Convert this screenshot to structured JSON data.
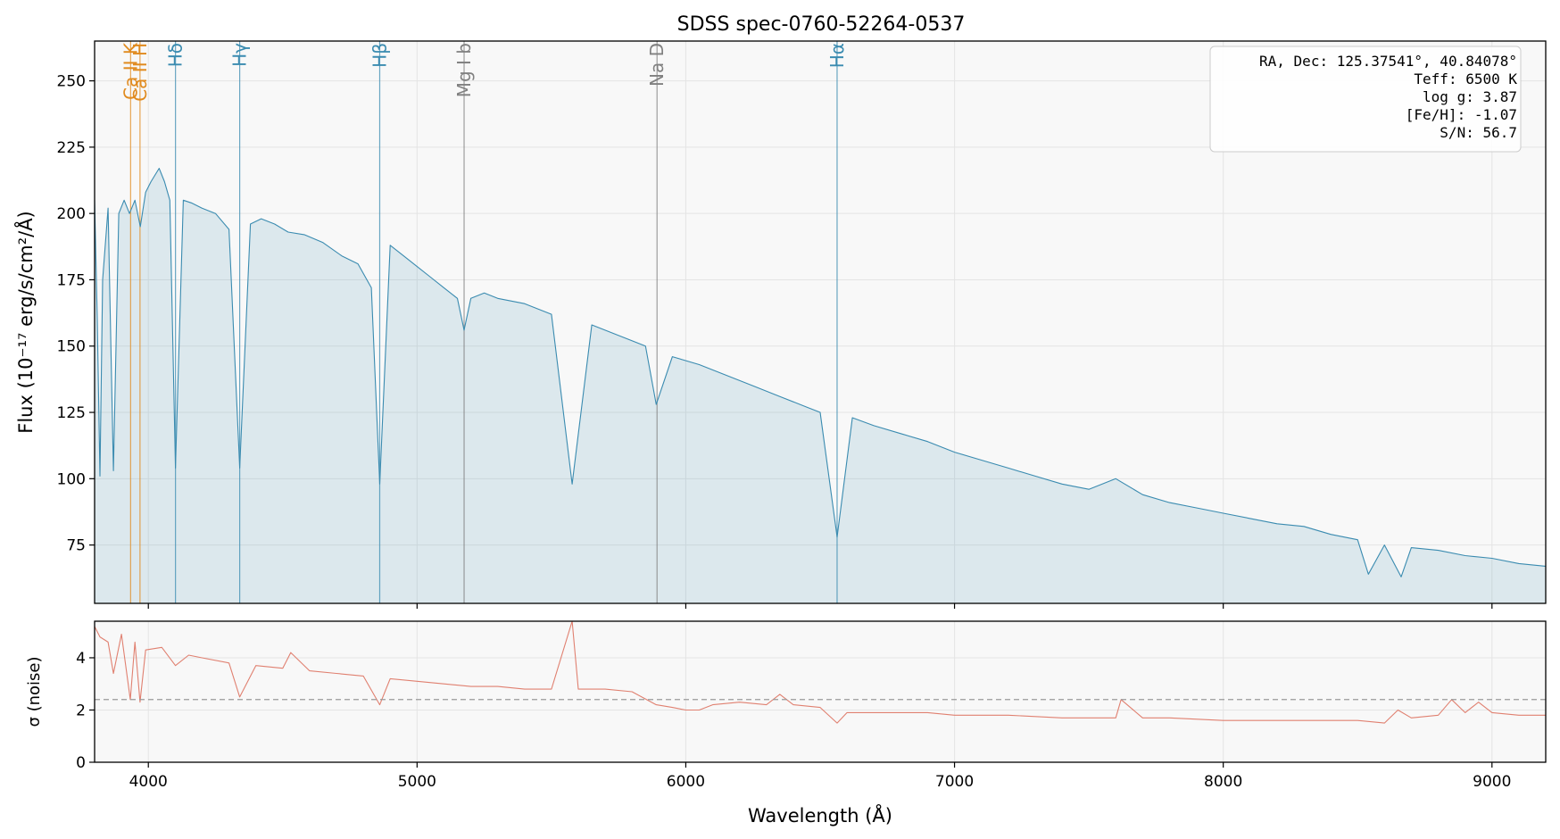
{
  "chart_data": [
    {
      "type": "line",
      "title": "SDSS spec-0760-52264-0537",
      "xlabel": "Wavelength (Å)",
      "ylabel": "Flux (10⁻¹⁷ erg/s/cm²/Å)",
      "xlim": [
        3800,
        9200
      ],
      "ylim": [
        53,
        265
      ],
      "xticks": [
        4000,
        5000,
        6000,
        7000,
        8000,
        9000
      ],
      "yticks": [
        75,
        100,
        125,
        150,
        175,
        200,
        225,
        250
      ],
      "grid": true,
      "fill_under": true,
      "series": [
        {
          "color": "#3a8bb0",
          "x": [
            3800,
            3810,
            3820,
            3830,
            3850,
            3870,
            3890,
            3910,
            3930,
            3950,
            3970,
            3990,
            4010,
            4040,
            4060,
            4080,
            4101,
            4130,
            4160,
            4200,
            4250,
            4300,
            4340,
            4380,
            4420,
            4470,
            4520,
            4580,
            4650,
            4720,
            4780,
            4830,
            4861,
            4900,
            4950,
            5000,
            5050,
            5100,
            5150,
            5175,
            5200,
            5250,
            5300,
            5400,
            5500,
            5577,
            5650,
            5750,
            5850,
            5890,
            5950,
            6050,
            6150,
            6250,
            6350,
            6450,
            6500,
            6563,
            6620,
            6700,
            6800,
            6900,
            7000,
            7100,
            7200,
            7300,
            7400,
            7500,
            7600,
            7700,
            7800,
            7900,
            8000,
            8100,
            8200,
            8300,
            8400,
            8500,
            8540,
            8600,
            8662,
            8700,
            8800,
            8900,
            9000,
            9100,
            9200
          ],
          "y": [
            205,
            160,
            101,
            175,
            202,
            103,
            200,
            205,
            200,
            205,
            195,
            208,
            212,
            217,
            212,
            205,
            104,
            205,
            204,
            202,
            200,
            194,
            104,
            196,
            198,
            196,
            193,
            192,
            189,
            184,
            181,
            172,
            98,
            188,
            184,
            180,
            176,
            172,
            168,
            156,
            168,
            170,
            168,
            166,
            162,
            98,
            158,
            154,
            150,
            128,
            146,
            143,
            139,
            135,
            131,
            127,
            125,
            78,
            123,
            120,
            117,
            114,
            110,
            107,
            104,
            101,
            98,
            96,
            100,
            94,
            91,
            89,
            87,
            85,
            83,
            82,
            79,
            77,
            64,
            75,
            63,
            74,
            73,
            71,
            70,
            68,
            67
          ]
        }
      ],
      "line_markers": [
        {
          "label": "Ca II K",
          "wavelength": 3934,
          "color": "#e08a1e"
        },
        {
          "label": "Ca II H",
          "wavelength": 3969,
          "color": "#e08a1e"
        },
        {
          "label": "Hδ",
          "wavelength": 4101,
          "color": "#3a8bb0"
        },
        {
          "label": "Hγ",
          "wavelength": 4340,
          "color": "#3a8bb0"
        },
        {
          "label": "Hβ",
          "wavelength": 4861,
          "color": "#3a8bb0"
        },
        {
          "label": "Mg I b",
          "wavelength": 5175,
          "color": "#808080"
        },
        {
          "label": "Na D",
          "wavelength": 5893,
          "color": "#808080"
        },
        {
          "label": "Hα",
          "wavelength": 6563,
          "color": "#3a8bb0"
        }
      ],
      "annotation": {
        "placement": "top-right",
        "lines": [
          "RA, Dec: 125.37541°, 40.84078°",
          "Teff: 6500 K",
          "log g: 3.87",
          "[Fe/H]: -1.07",
          "S/N: 56.7"
        ]
      }
    },
    {
      "type": "line",
      "xlabel": "Wavelength (Å)",
      "ylabel": "σ (noise)",
      "xlim": [
        3800,
        9200
      ],
      "ylim": [
        0,
        5.4
      ],
      "xticks": [
        4000,
        5000,
        6000,
        7000,
        8000,
        9000
      ],
      "yticks": [
        0,
        2,
        4
      ],
      "grid": true,
      "reference_line": 2.4,
      "series": [
        {
          "color": "#e08070",
          "x": [
            3800,
            3820,
            3850,
            3870,
            3900,
            3933,
            3950,
            3969,
            3990,
            4050,
            4101,
            4150,
            4200,
            4300,
            4340,
            4400,
            4500,
            4530,
            4600,
            4700,
            4800,
            4861,
            4900,
            5000,
            5100,
            5200,
            5300,
            5400,
            5500,
            5577,
            5600,
            5700,
            5800,
            5890,
            5950,
            6000,
            6050,
            6100,
            6200,
            6300,
            6350,
            6400,
            6500,
            6563,
            6600,
            6700,
            6800,
            6900,
            7000,
            7200,
            7400,
            7600,
            7620,
            7700,
            7800,
            8000,
            8200,
            8400,
            8500,
            8600,
            8650,
            8700,
            8800,
            8850,
            8900,
            8950,
            9000,
            9100,
            9200
          ],
          "y": [
            5.2,
            4.8,
            4.6,
            3.4,
            4.9,
            2.4,
            4.6,
            2.3,
            4.3,
            4.4,
            3.7,
            4.1,
            4.0,
            3.8,
            2.5,
            3.7,
            3.6,
            4.2,
            3.5,
            3.4,
            3.3,
            2.2,
            3.2,
            3.1,
            3.0,
            2.9,
            2.9,
            2.8,
            2.8,
            5.4,
            2.8,
            2.8,
            2.7,
            2.2,
            2.1,
            2.0,
            2.0,
            2.2,
            2.3,
            2.2,
            2.6,
            2.2,
            2.1,
            1.5,
            1.9,
            1.9,
            1.9,
            1.9,
            1.8,
            1.8,
            1.7,
            1.7,
            2.4,
            1.7,
            1.7,
            1.6,
            1.6,
            1.6,
            1.6,
            1.5,
            2.0,
            1.7,
            1.8,
            2.4,
            1.9,
            2.3,
            1.9,
            1.8,
            1.8
          ]
        }
      ]
    }
  ]
}
